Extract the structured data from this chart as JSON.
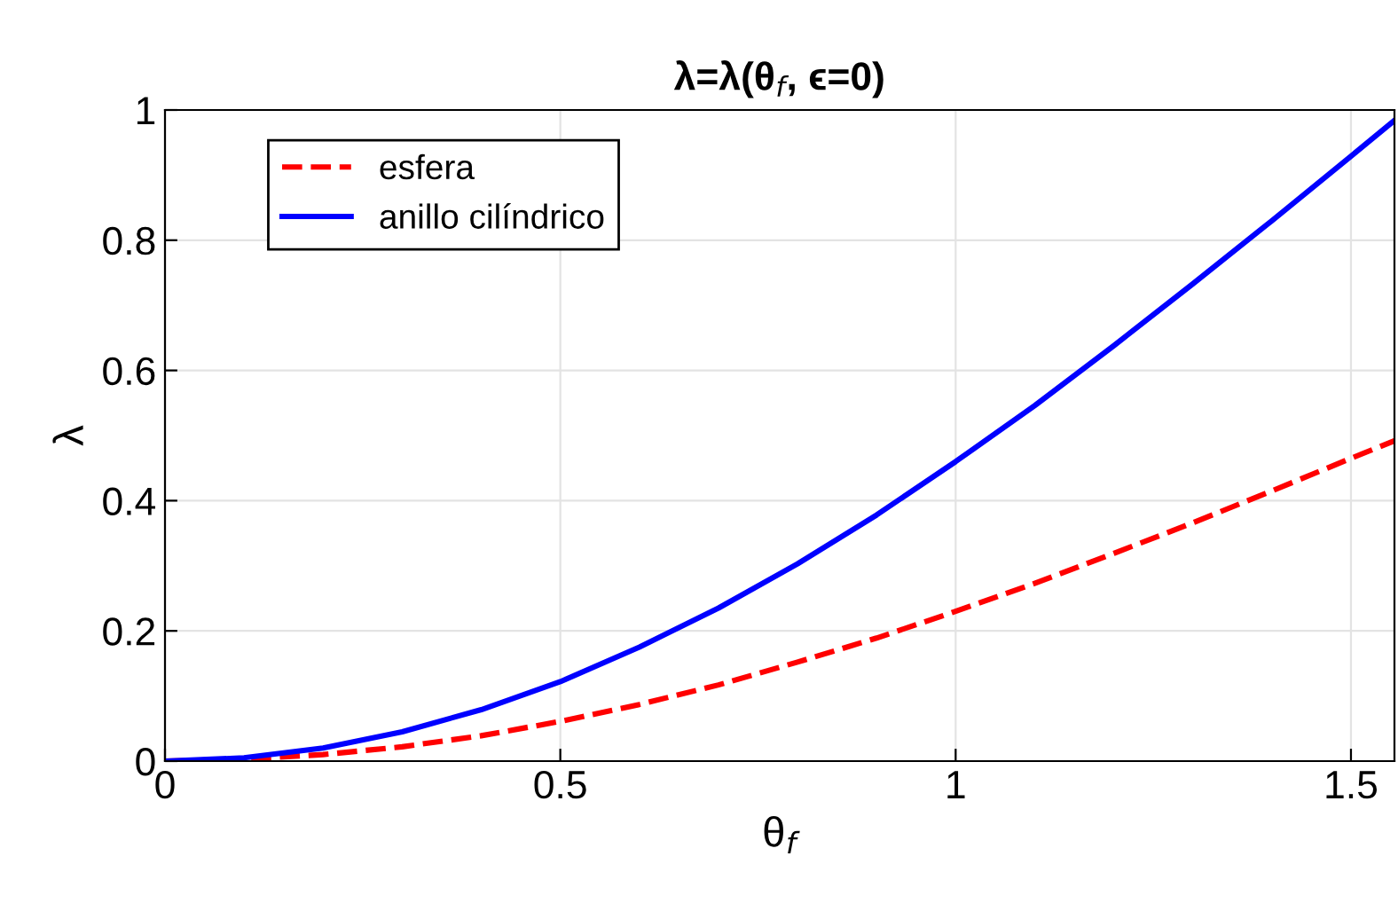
{
  "chart_data": {
    "type": "line",
    "title": "λ=λ(θ$_{f}$, ϵ=0)",
    "xlabel": "θ$_{f}$",
    "ylabel": "λ",
    "x": [
      0,
      0.1,
      0.2,
      0.3,
      0.4,
      0.5,
      0.6,
      0.7,
      0.8,
      0.9,
      1.0,
      1.1,
      1.2,
      1.3,
      1.4,
      1.5,
      1.555
    ],
    "series": [
      {
        "name": "esfera",
        "color": "#ff0000",
        "line_style": "dashed",
        "values": [
          0,
          0.003,
          0.01,
          0.022,
          0.039,
          0.061,
          0.087,
          0.117,
          0.152,
          0.189,
          0.23,
          0.273,
          0.319,
          0.366,
          0.415,
          0.465,
          0.492
        ]
      },
      {
        "name": "anillo cilíndrico",
        "color": "#0000ff",
        "line_style": "solid",
        "values": [
          0,
          0.005,
          0.02,
          0.045,
          0.079,
          0.122,
          0.175,
          0.235,
          0.303,
          0.378,
          0.46,
          0.546,
          0.638,
          0.733,
          0.83,
          0.929,
          0.984
        ]
      }
    ],
    "xlim": [
      0,
      1.555
    ],
    "ylim": [
      0,
      1
    ],
    "xticks": [
      0,
      0.5,
      1,
      1.5
    ],
    "yticks": [
      0,
      0.2,
      0.4,
      0.6,
      0.8,
      1
    ],
    "grid": true,
    "legend": "top left",
    "marker": "none"
  }
}
